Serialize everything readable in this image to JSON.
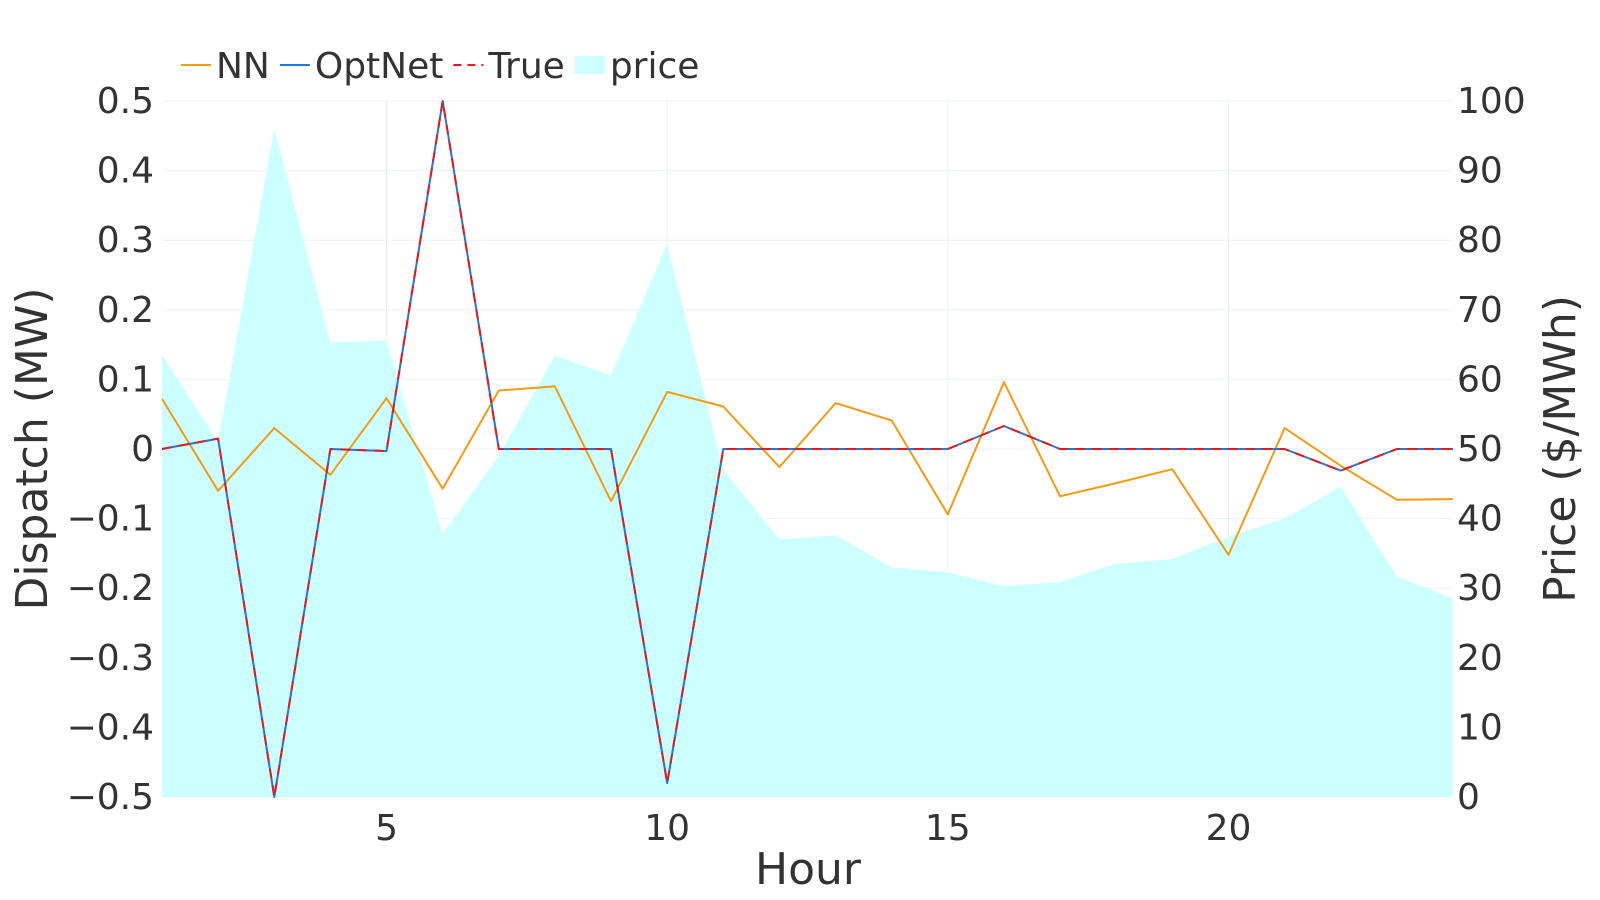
{
  "chart_data": {
    "type": "line",
    "x": [
      1,
      2,
      3,
      4,
      5,
      6,
      7,
      8,
      9,
      10,
      11,
      12,
      13,
      14,
      15,
      16,
      17,
      18,
      19,
      20,
      21,
      22,
      23,
      24
    ],
    "xlabel": "Hour",
    "ylabel": "Dispatch (MW)",
    "y2label": "Price ($/MWh)",
    "xlim": [
      1,
      24
    ],
    "ylim": [
      -0.5,
      0.5
    ],
    "y2lim": [
      0,
      100
    ],
    "xticks": [
      "5",
      "10",
      "15",
      "20"
    ],
    "yticks": [
      "0.5",
      "0.4",
      "0.3",
      "0.2",
      "0.1",
      "0",
      "−0.1",
      "−0.2",
      "−0.3",
      "−0.4",
      "−0.5"
    ],
    "y2ticks": [
      "100",
      "90",
      "80",
      "70",
      "60",
      "50",
      "40",
      "30",
      "20",
      "10",
      "0"
    ],
    "legend_position": "top-left",
    "grid": true,
    "series": [
      {
        "name": "NN",
        "axis": "left",
        "style": "solid",
        "color": "#f39c12",
        "values": [
          0.072,
          -0.06,
          0.03,
          -0.037,
          0.073,
          -0.057,
          0.084,
          0.09,
          -0.075,
          0.082,
          0.061,
          -0.026,
          0.066,
          0.041,
          -0.094,
          0.096,
          -0.068,
          -0.049,
          -0.029,
          -0.152,
          0.03,
          -0.024,
          -0.073,
          -0.072
        ]
      },
      {
        "name": "OptNet",
        "axis": "left",
        "style": "solid",
        "color": "#1f77e4",
        "values": [
          0.0,
          0.015,
          -0.5,
          0.0,
          -0.003,
          0.5,
          0.0,
          0.0,
          0.0,
          -0.48,
          0.0,
          0.0,
          0.0,
          0.0,
          0.0,
          0.033,
          0.0,
          0.0,
          0.0,
          0.0,
          0.0,
          -0.031,
          0.0,
          0.0
        ]
      },
      {
        "name": "True",
        "axis": "left",
        "style": "dashed",
        "color": "#e41a1c",
        "values": [
          0.0,
          0.015,
          -0.5,
          0.0,
          -0.003,
          0.5,
          0.0,
          0.0,
          0.0,
          -0.48,
          0.0,
          0.0,
          0.0,
          0.0,
          0.0,
          0.033,
          0.0,
          0.0,
          0.0,
          0.0,
          0.0,
          -0.031,
          0.0,
          0.0
        ]
      },
      {
        "name": "price",
        "axis": "right",
        "style": "area",
        "color": "#ccffff",
        "values": [
          63.5,
          51,
          96,
          65.3,
          65.6,
          37.8,
          49,
          63.4,
          60.6,
          79.5,
          47,
          37,
          37.6,
          33,
          32.3,
          30.3,
          30.9,
          33.5,
          34.2,
          37.4,
          40,
          44.6,
          31.7,
          28.5
        ]
      }
    ]
  }
}
